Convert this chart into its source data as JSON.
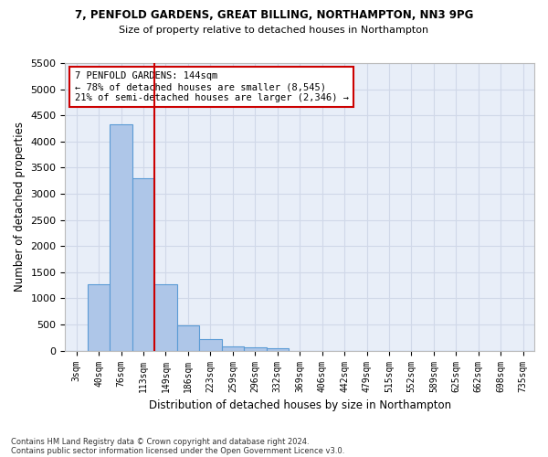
{
  "title1": "7, PENFOLD GARDENS, GREAT BILLING, NORTHAMPTON, NN3 9PG",
  "title2": "Size of property relative to detached houses in Northampton",
  "xlabel": "Distribution of detached houses by size in Northampton",
  "ylabel": "Number of detached properties",
  "footnote1": "Contains HM Land Registry data © Crown copyright and database right 2024.",
  "footnote2": "Contains public sector information licensed under the Open Government Licence v3.0.",
  "bin_labels": [
    "3sqm",
    "40sqm",
    "76sqm",
    "113sqm",
    "149sqm",
    "186sqm",
    "223sqm",
    "259sqm",
    "296sqm",
    "332sqm",
    "369sqm",
    "406sqm",
    "442sqm",
    "479sqm",
    "515sqm",
    "552sqm",
    "589sqm",
    "625sqm",
    "662sqm",
    "698sqm",
    "735sqm"
  ],
  "bar_values": [
    0,
    1270,
    4325,
    3300,
    1275,
    490,
    215,
    90,
    65,
    55,
    0,
    0,
    0,
    0,
    0,
    0,
    0,
    0,
    0,
    0,
    0
  ],
  "bar_color": "#aec6e8",
  "bar_edge_color": "#5b9bd5",
  "ylim": [
    0,
    5500
  ],
  "yticks": [
    0,
    500,
    1000,
    1500,
    2000,
    2500,
    3000,
    3500,
    4000,
    4500,
    5000,
    5500
  ],
  "property_bin_index": 3,
  "red_line_color": "#cc0000",
  "annotation_text": "7 PENFOLD GARDENS: 144sqm\n← 78% of detached houses are smaller (8,545)\n21% of semi-detached houses are larger (2,346) →",
  "annotation_box_color": "#cc0000",
  "grid_color": "#d0d8e8",
  "bg_color": "#e8eef8"
}
